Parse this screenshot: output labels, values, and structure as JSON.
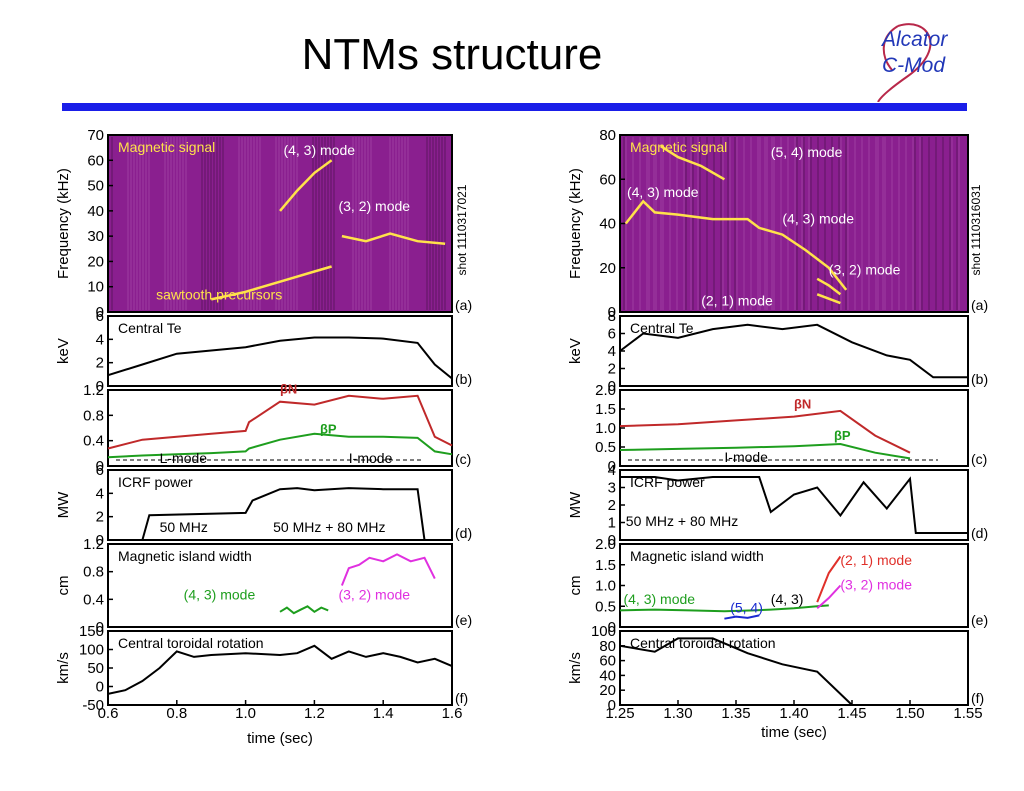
{
  "slide": {
    "title": "NTMs structure",
    "logo_lines": [
      "Alcator",
      "C-Mod"
    ]
  },
  "colors": {
    "rule": "#1a1ee8",
    "spectrogram_bg": "#8a1f8f",
    "beta_n": "#c0292a",
    "beta_p": "#1e9e1e",
    "mode_43": "#1e9e1e",
    "mode_32": "#e030e0",
    "mode_54": "#1a2ad0",
    "mode_21": "#e0302a"
  },
  "chart_data": [
    {
      "shot_label": "shot 1110317021",
      "x_ticks": [
        "0.6",
        "0.8",
        "1.0",
        "1.2",
        "1.4",
        "1.6"
      ],
      "xlim": [
        0.6,
        1.6
      ],
      "xlabel": "time (sec)",
      "panels": [
        {
          "type": "heatmap",
          "letter": "(a)",
          "ylabel": "Frequency (kHz)",
          "ylim": [
            0,
            70
          ],
          "y_ticks": [
            "70",
            "60",
            "50",
            "40",
            "30",
            "20",
            "10",
            "0"
          ],
          "inner_title": "Magnetic signal",
          "annotations": [
            {
              "text": "(4, 3) mode",
              "x": 1.11,
              "y": 62
            },
            {
              "text": "(3, 2) mode",
              "x": 1.27,
              "y": 40
            },
            {
              "text": "sawtooth precursors",
              "x": 0.74,
              "y": 5
            }
          ],
          "series": [
            {
              "name": "(4, 3) mode",
              "x": [
                1.1,
                1.15,
                1.2,
                1.25
              ],
              "y": [
                40,
                48,
                55,
                60
              ]
            },
            {
              "name": "(3, 2) mode",
              "x": [
                1.28,
                1.35,
                1.42,
                1.5,
                1.58
              ],
              "y": [
                30,
                28,
                31,
                28,
                27
              ]
            },
            {
              "name": "sawtooth precursors",
              "x": [
                0.9,
                1.0,
                1.1,
                1.2,
                1.25
              ],
              "y": [
                5,
                8,
                12,
                16,
                18
              ]
            }
          ]
        },
        {
          "type": "line",
          "letter": "(b)",
          "ylabel": "keV",
          "ylim": [
            0,
            6.5
          ],
          "y_ticks": [
            "6",
            "4",
            "2",
            "0"
          ],
          "inner_title": "Central Te",
          "series": [
            {
              "name": "Central Te",
              "x": [
                0.6,
                0.7,
                0.8,
                0.9,
                1.0,
                1.1,
                1.2,
                1.3,
                1.4,
                1.5,
                1.55,
                1.6
              ],
              "y": [
                1.0,
                2.0,
                3.0,
                3.3,
                3.6,
                4.2,
                4.5,
                4.5,
                4.4,
                4.0,
                2.0,
                0.7
              ]
            }
          ]
        },
        {
          "type": "line",
          "letter": "(c)",
          "ylabel": "",
          "ylim": [
            0,
            1.3
          ],
          "y_ticks": [
            "1.2",
            "0.8",
            "0.4",
            "0"
          ],
          "series": [
            {
              "name": "βN",
              "x": [
                0.6,
                0.7,
                0.8,
                0.9,
                1.0,
                1.01,
                1.1,
                1.2,
                1.3,
                1.4,
                1.5,
                1.55,
                1.6
              ],
              "y": [
                0.3,
                0.45,
                0.5,
                0.55,
                0.6,
                0.75,
                1.1,
                1.05,
                1.2,
                1.15,
                1.2,
                0.5,
                0.35
              ]
            },
            {
              "name": "βP",
              "x": [
                0.6,
                0.7,
                0.8,
                0.9,
                1.0,
                1.01,
                1.1,
                1.2,
                1.3,
                1.4,
                1.5,
                1.55,
                1.6
              ],
              "y": [
                0.15,
                0.18,
                0.2,
                0.22,
                0.25,
                0.3,
                0.45,
                0.55,
                0.5,
                0.5,
                0.48,
                0.25,
                0.2
              ]
            }
          ],
          "annotations": [
            {
              "text": "L-mode",
              "x": 0.75,
              "y": 0.05
            },
            {
              "text": "I-mode",
              "x": 1.3,
              "y": 0.05
            }
          ]
        },
        {
          "type": "line",
          "letter": "(d)",
          "ylabel": "MW",
          "ylim": [
            0,
            6.2
          ],
          "y_ticks": [
            "6",
            "4",
            "2",
            "0"
          ],
          "inner_title": "ICRF power",
          "series": [
            {
              "name": "ICRF power",
              "x": [
                0.6,
                0.7,
                0.72,
                1.0,
                1.02,
                1.1,
                1.15,
                1.2,
                1.3,
                1.4,
                1.5,
                1.52,
                1.6
              ],
              "y": [
                0,
                0,
                2.2,
                2.4,
                3.5,
                4.5,
                4.6,
                4.4,
                4.6,
                4.5,
                4.5,
                0,
                0
              ]
            }
          ],
          "annotations": [
            {
              "text": "50 MHz",
              "x": 0.75,
              "y": 0.7
            },
            {
              "text": "50 MHz + 80 MHz",
              "x": 1.08,
              "y": 0.7
            }
          ]
        },
        {
          "type": "line",
          "letter": "(e)",
          "ylabel": "cm",
          "ylim": [
            0,
            1.2
          ],
          "y_ticks": [
            "1.2",
            "0.8",
            "0.4",
            "0"
          ],
          "inner_title": "Magnetic island width",
          "series": [
            {
              "name": "(4, 3) mode",
              "x": [
                1.1,
                1.12,
                1.14,
                1.16,
                1.18,
                1.2,
                1.22,
                1.24
              ],
              "y": [
                0.22,
                0.28,
                0.2,
                0.25,
                0.3,
                0.22,
                0.28,
                0.24
              ]
            },
            {
              "name": "(3, 2) mode",
              "x": [
                1.28,
                1.3,
                1.33,
                1.36,
                1.4,
                1.44,
                1.48,
                1.52,
                1.55
              ],
              "y": [
                0.6,
                0.85,
                0.9,
                1.0,
                0.95,
                1.05,
                0.95,
                1.0,
                0.7
              ]
            }
          ],
          "annotations": [
            {
              "text": "(4, 3) mode",
              "x": 0.82,
              "y": 0.4
            },
            {
              "text": "(3, 2) mode",
              "x": 1.27,
              "y": 0.4
            }
          ]
        },
        {
          "type": "line",
          "letter": "(f)",
          "ylabel": "km/s",
          "ylim": [
            -50,
            150
          ],
          "y_ticks": [
            "150",
            "100",
            "50",
            "0",
            "-50"
          ],
          "inner_title": "Central toroidal rotation",
          "series": [
            {
              "name": "Central toroidal rotation",
              "x": [
                0.6,
                0.65,
                0.7,
                0.75,
                0.8,
                0.85,
                0.9,
                1.0,
                1.1,
                1.15,
                1.2,
                1.25,
                1.3,
                1.35,
                1.4,
                1.45,
                1.5,
                1.55,
                1.6
              ],
              "y": [
                -20,
                -10,
                15,
                50,
                95,
                80,
                85,
                90,
                85,
                90,
                110,
                75,
                95,
                80,
                90,
                80,
                65,
                75,
                55
              ]
            }
          ]
        }
      ]
    },
    {
      "shot_label": "shot 1110316031",
      "x_ticks": [
        "1.25",
        "1.30",
        "1.35",
        "1.40",
        "1.45",
        "1.50",
        "1.55"
      ],
      "xlim": [
        1.25,
        1.55
      ],
      "xlabel": "time (sec)",
      "panels": [
        {
          "type": "heatmap",
          "letter": "(a)",
          "ylabel": "Frequency (kHz)",
          "ylim": [
            0,
            80
          ],
          "y_ticks": [
            "80",
            "60",
            "40",
            "20",
            "0"
          ],
          "inner_title": "Magnetic signal",
          "annotations": [
            {
              "text": "(5, 4) mode",
              "x": 1.38,
              "y": 70
            },
            {
              "text": "(4, 3) mode",
              "x": 1.256,
              "y": 52
            },
            {
              "text": "(4, 3) mode",
              "x": 1.39,
              "y": 40
            },
            {
              "text": "(3, 2) mode",
              "x": 1.43,
              "y": 17
            },
            {
              "text": "(2, 1) mode",
              "x": 1.32,
              "y": 3
            }
          ],
          "series": [
            {
              "name": "(5, 4) mode",
              "x": [
                1.285,
                1.3,
                1.32,
                1.34
              ],
              "y": [
                75,
                70,
                66,
                60
              ]
            },
            {
              "name": "(4, 3) mode",
              "x": [
                1.255,
                1.27,
                1.28,
                1.3,
                1.33,
                1.36,
                1.37,
                1.39,
                1.41,
                1.43,
                1.445
              ],
              "y": [
                40,
                50,
                45,
                44,
                42,
                42,
                38,
                35,
                28,
                20,
                10
              ]
            },
            {
              "name": "(3, 2) mode",
              "x": [
                1.42,
                1.43,
                1.44
              ],
              "y": [
                15,
                12,
                8
              ]
            },
            {
              "name": "(2, 1) mode",
              "x": [
                1.42,
                1.43,
                1.44
              ],
              "y": [
                8,
                6,
                4
              ]
            }
          ]
        },
        {
          "type": "line",
          "letter": "(b)",
          "ylabel": "keV",
          "ylim": [
            0,
            8
          ],
          "y_ticks": [
            "8",
            "6",
            "4",
            "2",
            "0"
          ],
          "inner_title": "Central Te",
          "series": [
            {
              "name": "Central Te",
              "x": [
                1.25,
                1.27,
                1.3,
                1.33,
                1.36,
                1.39,
                1.42,
                1.45,
                1.48,
                1.5,
                1.52,
                1.55
              ],
              "y": [
                4,
                6,
                5.5,
                6.5,
                7,
                6.5,
                7,
                5,
                3.5,
                3,
                1,
                1
              ]
            }
          ]
        },
        {
          "type": "line",
          "letter": "(c)",
          "ylabel": "",
          "ylim": [
            0,
            2.0
          ],
          "y_ticks": [
            "2.0",
            "1.5",
            "1.0",
            "0.5",
            "0"
          ],
          "series": [
            {
              "name": "βN",
              "x": [
                1.25,
                1.3,
                1.35,
                1.4,
                1.44,
                1.47,
                1.5
              ],
              "y": [
                1.05,
                1.1,
                1.2,
                1.3,
                1.45,
                0.8,
                0.35
              ]
            },
            {
              "name": "βP",
              "x": [
                1.25,
                1.3,
                1.35,
                1.4,
                1.44,
                1.47,
                1.5
              ],
              "y": [
                0.42,
                0.45,
                0.48,
                0.52,
                0.58,
                0.35,
                0.2
              ]
            }
          ],
          "annotations": [
            {
              "text": "I-mode",
              "x": 1.34,
              "y": 0.1
            }
          ]
        },
        {
          "type": "line",
          "letter": "(d)",
          "ylabel": "MW",
          "ylim": [
            0,
            4
          ],
          "y_ticks": [
            "4",
            "3",
            "2",
            "1",
            "0"
          ],
          "inner_title": "ICRF power",
          "series": [
            {
              "name": "ICRF power",
              "x": [
                1.25,
                1.28,
                1.3,
                1.33,
                1.35,
                1.37,
                1.38,
                1.4,
                1.42,
                1.44,
                1.46,
                1.48,
                1.5,
                1.505,
                1.55
              ],
              "y": [
                3.6,
                3.6,
                3.4,
                3.6,
                3.6,
                3.6,
                1.6,
                2.6,
                3.0,
                1.4,
                3.3,
                1.8,
                3.5,
                0.4,
                0.4
              ]
            }
          ],
          "annotations": [
            {
              "text": "50 MHz + 80 MHz",
              "x": 1.255,
              "y": 0.8
            }
          ]
        },
        {
          "type": "line",
          "letter": "(e)",
          "ylabel": "cm",
          "ylim": [
            0,
            2.0
          ],
          "y_ticks": [
            "2.0",
            "1.5",
            "1.0",
            "0.5",
            "0"
          ],
          "inner_title": "Magnetic island width",
          "series": [
            {
              "name": "(4, 3) mode",
              "x": [
                1.25,
                1.28,
                1.31,
                1.34,
                1.365,
                1.38,
                1.4,
                1.42,
                1.43
              ],
              "y": [
                0.4,
                0.42,
                0.4,
                0.38,
                0.4,
                0.42,
                0.45,
                0.5,
                0.52
              ]
            },
            {
              "name": "(5, 4)",
              "x": [
                1.34,
                1.35,
                1.36,
                1.37
              ],
              "y": [
                0.2,
                0.25,
                0.22,
                0.28
              ]
            },
            {
              "name": "(2, 1) mode",
              "x": [
                1.42,
                1.43,
                1.44
              ],
              "y": [
                0.6,
                1.3,
                1.7
              ]
            },
            {
              "name": "(3, 2) mode",
              "x": [
                1.42,
                1.43,
                1.44
              ],
              "y": [
                0.45,
                0.7,
                1.0
              ]
            }
          ],
          "annotations": [
            {
              "text": "(4, 3) mode",
              "x": 1.253,
              "y": 0.55
            },
            {
              "text": "(5, 4)",
              "x": 1.345,
              "y": 0.35
            },
            {
              "text": "(4, 3)",
              "x": 1.38,
              "y": 0.55
            },
            {
              "text": "(2, 1) mode",
              "x": 1.44,
              "y": 1.5
            },
            {
              "text": "(3, 2) mode",
              "x": 1.44,
              "y": 0.9
            }
          ]
        },
        {
          "type": "line",
          "letter": "(f)",
          "ylabel": "km/s",
          "ylim": [
            0,
            100
          ],
          "y_ticks": [
            "100",
            "80",
            "60",
            "40",
            "20",
            "0"
          ],
          "inner_title": "Central toroidal rotation",
          "series": [
            {
              "name": "Central toroidal rotation",
              "x": [
                1.25,
                1.28,
                1.3,
                1.33,
                1.36,
                1.39,
                1.42,
                1.45
              ],
              "y": [
                80,
                72,
                90,
                90,
                70,
                55,
                45,
                0
              ]
            }
          ]
        }
      ]
    }
  ]
}
